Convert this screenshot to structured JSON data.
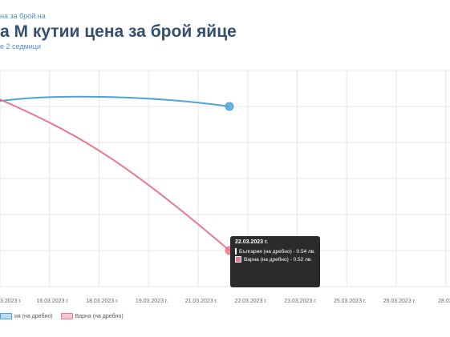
{
  "header": {
    "top_text": "на за брой на",
    "title": "а М кутии цена за брой яйце",
    "subtitle": "е 2 седмици"
  },
  "colors": {
    "bulgaria": "#4da3d9",
    "varna": "#e8798d",
    "grid": "#e6e6e6"
  },
  "tooltip": {
    "date": "22.03.2023 г.",
    "rows": [
      {
        "label": "България (на дребно) - 0.54 лв.",
        "color": "#4da3d9"
      },
      {
        "label": "Варна (на дребно) - 0.52 лв.",
        "color": "#e8798d"
      }
    ]
  },
  "legend": [
    {
      "label": "ия (на дребно)",
      "color": "#4da3d9"
    },
    {
      "label": "Варна (на дребно)",
      "color": "#e8798d"
    }
  ],
  "chart_data": {
    "type": "line",
    "x_ticks": [
      "3.2023 г.",
      "16.03.2023 г.",
      "18.03.2023 г.",
      "19.03.2023 г.",
      "21.03.2023 г.",
      "22.03.2023 г.",
      "23.03.2023 г.",
      "25.03.2023 г.",
      "26.03.2023 г.",
      "28.03.20"
    ],
    "series": [
      {
        "name": "България (на дребно)",
        "color": "#4da3d9",
        "points": [
          {
            "x": "14.03.2023",
            "y": 0.54
          },
          {
            "x": "22.03.2023",
            "y": 0.54
          }
        ]
      },
      {
        "name": "Варна (на дребно)",
        "color": "#e8798d",
        "points": [
          {
            "x": "14.03.2023",
            "y": 0.541
          },
          {
            "x": "22.03.2023",
            "y": 0.52
          }
        ]
      }
    ]
  }
}
